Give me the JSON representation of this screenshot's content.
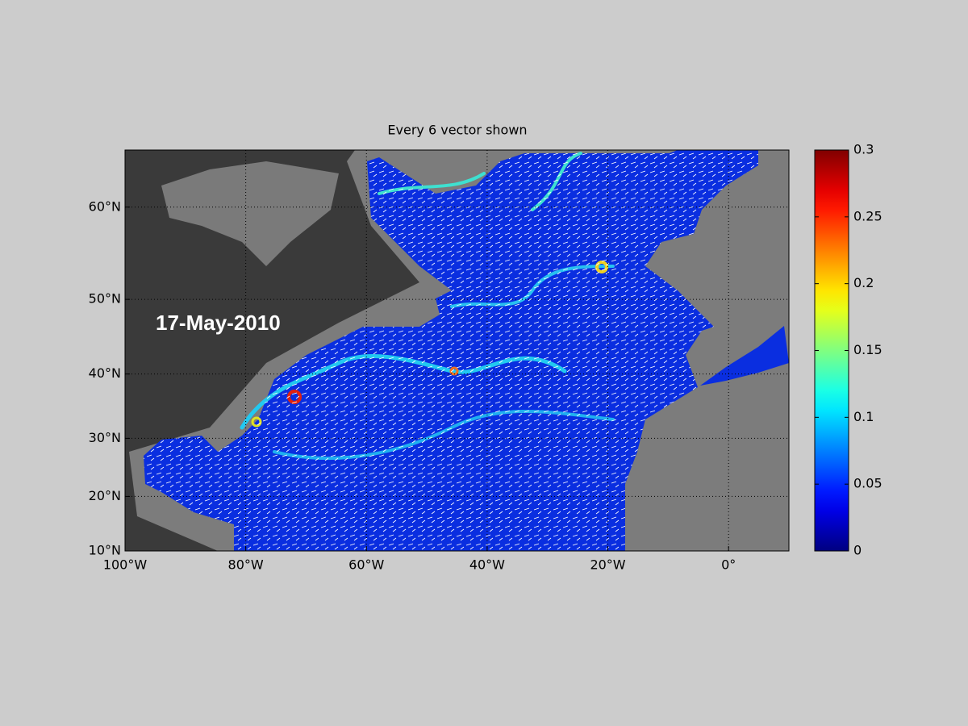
{
  "chart_data": {
    "type": "map",
    "projection": "mercator",
    "title": "Every 6 vector shown",
    "annotation": "17-May-2010",
    "xlim": [
      -100,
      10
    ],
    "ylim": [
      10,
      65
    ],
    "xticks": [
      {
        "value": -100,
        "label": "100°W"
      },
      {
        "value": -80,
        "label": "80°W"
      },
      {
        "value": -60,
        "label": "60°W"
      },
      {
        "value": -40,
        "label": "40°W"
      },
      {
        "value": -20,
        "label": "20°W"
      },
      {
        "value": 0,
        "label": "0°"
      }
    ],
    "yticks": [
      {
        "value": 10,
        "label": "10°N"
      },
      {
        "value": 20,
        "label": "20°N"
      },
      {
        "value": 30,
        "label": "30°N"
      },
      {
        "value": 40,
        "label": "40°N"
      },
      {
        "value": 50,
        "label": "50°N"
      },
      {
        "value": 60,
        "label": "60°N"
      }
    ],
    "grid": true,
    "colormap": "jet",
    "colorbar": {
      "clim": [
        0,
        0.3
      ],
      "ticks": [
        0,
        0.05,
        0.1,
        0.15,
        0.2,
        0.25,
        0.3
      ]
    }
  }
}
